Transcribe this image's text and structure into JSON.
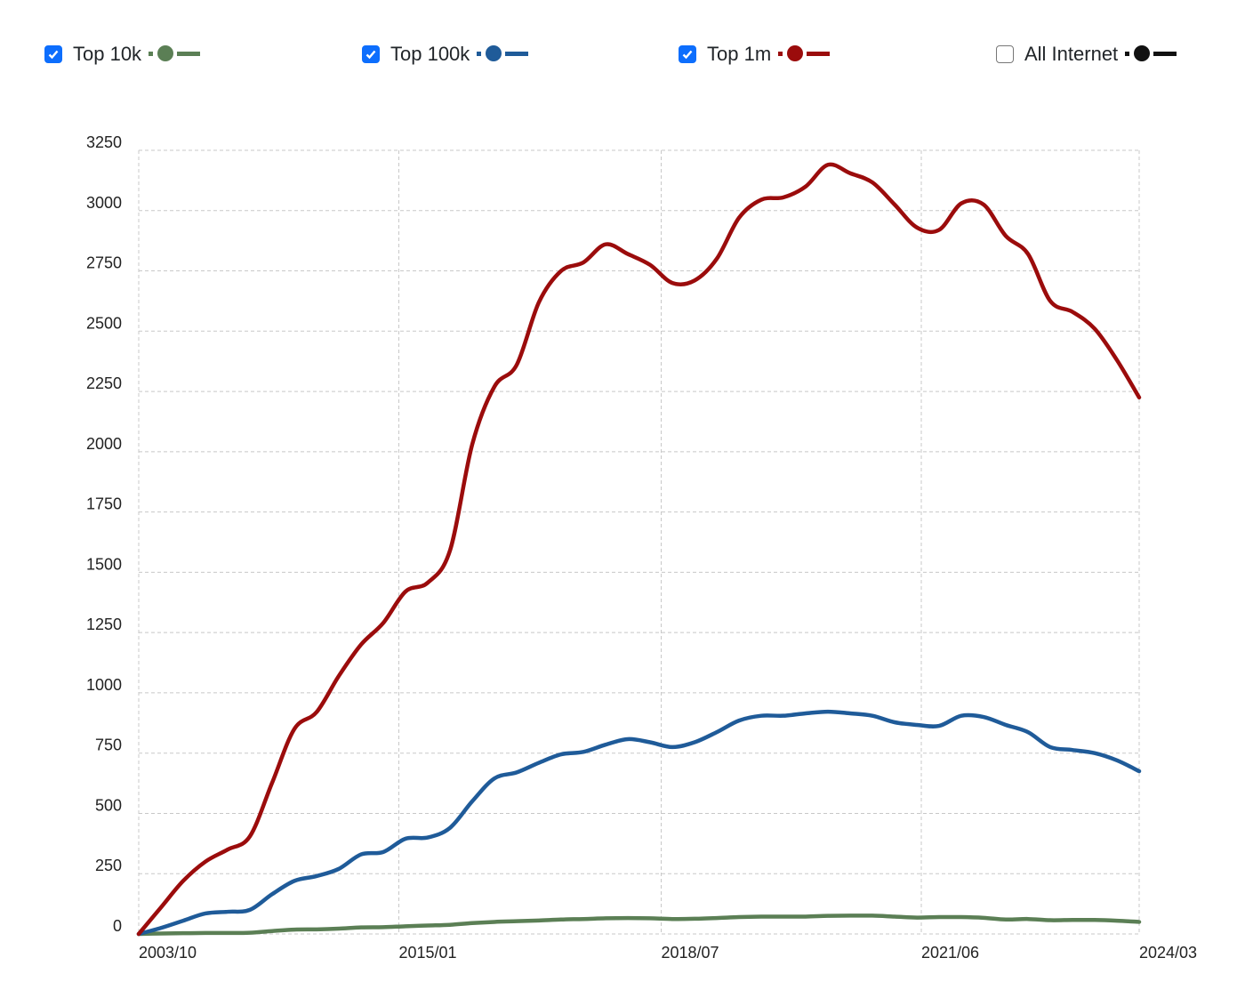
{
  "legend": [
    {
      "label": "Top 10k",
      "checked": true,
      "color": "#5b7f55"
    },
    {
      "label": "Top 100k",
      "checked": true,
      "color": "#1f5b99"
    },
    {
      "label": "Top 1m",
      "checked": true,
      "color": "#9b0c0c"
    },
    {
      "label": "All Internet",
      "checked": false,
      "color": "#111111"
    }
  ],
  "chart_data": {
    "type": "line",
    "title": "",
    "xlabel": "",
    "ylabel": "",
    "ylim": [
      0,
      3250
    ],
    "yticks": [
      0,
      250,
      500,
      750,
      1000,
      1250,
      1500,
      1750,
      2000,
      2250,
      2500,
      2750,
      3000,
      3250
    ],
    "x_ticks": [
      {
        "label": "2003/10",
        "index": 0
      },
      {
        "label": "2015/01",
        "index": 11.7
      },
      {
        "label": "2018/07",
        "index": 23.5
      },
      {
        "label": "2021/06",
        "index": 35.2
      },
      {
        "label": "2024/03",
        "index": 45
      }
    ],
    "grid": true,
    "legend_position": "top",
    "series": [
      {
        "name": "Top 10k",
        "color": "#5b7f55",
        "values": [
          0,
          2,
          3,
          4,
          4,
          5,
          12,
          18,
          19,
          22,
          27,
          28,
          32,
          35,
          38,
          45,
          50,
          53,
          56,
          60,
          62,
          65,
          66,
          65,
          62,
          63,
          66,
          70,
          72,
          72,
          72,
          75,
          76,
          76,
          72,
          68,
          70,
          70,
          67,
          60,
          62,
          57,
          58,
          58,
          55,
          50
        ]
      },
      {
        "name": "Top 100k",
        "color": "#1f5b99",
        "values": [
          0,
          25,
          55,
          85,
          92,
          100,
          165,
          220,
          240,
          270,
          330,
          340,
          395,
          400,
          440,
          550,
          645,
          670,
          710,
          745,
          755,
          785,
          808,
          795,
          775,
          795,
          837,
          885,
          905,
          905,
          915,
          922,
          915,
          905,
          878,
          867,
          863,
          905,
          900,
          867,
          837,
          775,
          763,
          750,
          720,
          675
        ]
      },
      {
        "name": "Top 1m",
        "color": "#9b0c0c",
        "values": [
          0,
          110,
          220,
          300,
          350,
          405,
          627,
          850,
          920,
          1070,
          1200,
          1290,
          1420,
          1457,
          1590,
          2030,
          2270,
          2360,
          2620,
          2750,
          2785,
          2860,
          2820,
          2775,
          2700,
          2710,
          2800,
          2970,
          3045,
          3055,
          3100,
          3190,
          3155,
          3117,
          3025,
          2930,
          2920,
          3030,
          3025,
          2895,
          2820,
          2625,
          2580,
          2510,
          2380,
          2225
        ]
      }
    ]
  }
}
